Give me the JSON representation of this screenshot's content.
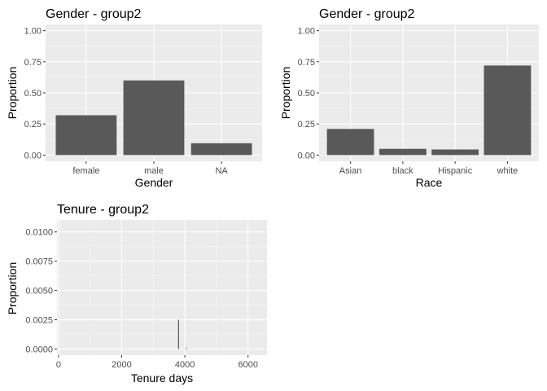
{
  "chart_data": [
    {
      "type": "bar",
      "title": "Gender - group2",
      "xlabel": "Gender",
      "ylabel": "Proportion",
      "categories": [
        "female",
        "male",
        "NA"
      ],
      "values": [
        0.32,
        0.6,
        0.095
      ],
      "ylim": [
        0,
        1.0
      ],
      "yticks": [
        0,
        0.25,
        0.5,
        0.75,
        1.0
      ],
      "ytick_labels": [
        "0.00",
        "0.25",
        "0.50",
        "0.75",
        "1.00"
      ],
      "grid": true,
      "bar_color": "#595959",
      "panel_color": "#ebebeb"
    },
    {
      "type": "bar",
      "title": "Gender - group2",
      "xlabel": "Race",
      "ylabel": "Proportion",
      "categories": [
        "Asian",
        "black",
        "Hispanic",
        "white"
      ],
      "values": [
        0.21,
        0.05,
        0.045,
        0.72
      ],
      "ylim": [
        0,
        1.0
      ],
      "yticks": [
        0,
        0.25,
        0.5,
        0.75,
        1.0
      ],
      "ytick_labels": [
        "0.00",
        "0.25",
        "0.50",
        "0.75",
        "1.00"
      ],
      "grid": true,
      "bar_color": "#595959",
      "panel_color": "#ebebeb"
    },
    {
      "type": "bar",
      "title": "Tenure - group2",
      "xlabel": "Tenure days",
      "ylabel": "Proportion",
      "x": [
        3800,
        4050
      ],
      "values": [
        0.0025,
        0.0001
      ],
      "xlim": [
        -50,
        6600
      ],
      "ylim": [
        0,
        0.0105
      ],
      "xticks": [
        0,
        2000,
        4000,
        6000
      ],
      "xtick_labels": [
        "0",
        "2000",
        "4000",
        "6000"
      ],
      "yticks": [
        0,
        0.0025,
        0.005,
        0.0075,
        0.01
      ],
      "ytick_labels": [
        "0.0000",
        "0.0025",
        "0.0050",
        "0.0075",
        "0.0100"
      ],
      "grid": true,
      "bar_color": "#595959",
      "panel_color": "#ebebeb"
    }
  ]
}
